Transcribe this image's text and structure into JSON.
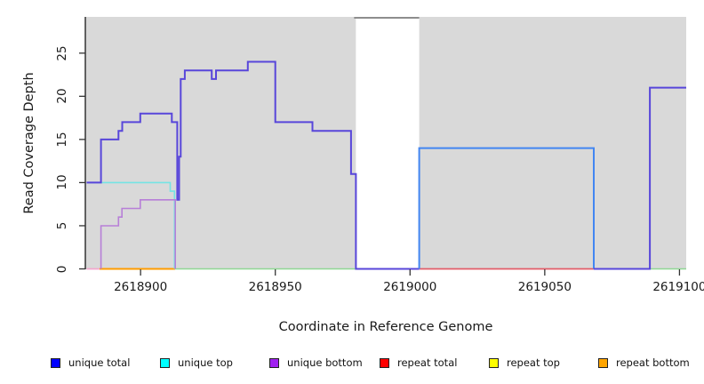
{
  "chart_data": {
    "type": "line",
    "title": "",
    "xlabel": "Coordinate in Reference Genome",
    "ylabel": "Read Coverage Depth",
    "xlim": [
      2618879.5,
      2619102.5
    ],
    "ylim": [
      0,
      29.2
    ],
    "x_ticks": [
      2618900,
      2618950,
      2619000,
      2619050,
      2619100
    ],
    "y_ticks": [
      0,
      5,
      10,
      15,
      20,
      25
    ],
    "grid": false,
    "plot_bg": "#d9d9d9",
    "axis_color": "#333333",
    "gap_region": {
      "from": 2618979.9,
      "to": 2619003.4,
      "fill": "#ffffff",
      "top_border_color": "#8d8d8d"
    },
    "legend_position": "bottom",
    "legend": [
      {
        "label": "unique total",
        "color": "#0000ff"
      },
      {
        "label": "unique top",
        "color": "#00ffff"
      },
      {
        "label": "unique bottom",
        "color": "#a020f0"
      },
      {
        "label": "repeat total",
        "color": "#ff0000"
      },
      {
        "label": "repeat top",
        "color": "#ffff00"
      },
      {
        "label": "repeat bottom",
        "color": "#ffa500"
      }
    ],
    "baseline_segments": [
      {
        "name": "baseline-pink",
        "color": "#f3a6cd",
        "width": 1.8,
        "from": 2618880,
        "to": 2618885.6
      },
      {
        "name": "baseline-orange",
        "color": "#ff9c00",
        "width": 2,
        "from": 2618884.8,
        "to": 2618912.8
      },
      {
        "name": "baseline-green-left",
        "color": "#8fd793",
        "width": 1.6,
        "from": 2618912.8,
        "to": 2618979.9
      },
      {
        "name": "baseline-red",
        "color": "#e25b68",
        "width": 1.8,
        "from": 2619003.4,
        "to": 2619068.2
      },
      {
        "name": "baseline-green-right",
        "color": "#8fd793",
        "width": 1.6,
        "from": 2619089,
        "to": 2619102.5
      }
    ],
    "series": [
      {
        "name": "unique-top-line",
        "color": "#74e4e4",
        "width": 1.6,
        "points": [
          [
            2618880,
            10
          ],
          [
            2618911,
            10
          ],
          [
            2618911,
            9
          ],
          [
            2618912.6,
            9
          ],
          [
            2618912.6,
            0
          ]
        ]
      },
      {
        "name": "unique-bottom-line",
        "color": "#b77fd8",
        "width": 1.6,
        "points": [
          [
            2618885.3,
            0
          ],
          [
            2618885.3,
            5
          ],
          [
            2618891.8,
            5
          ],
          [
            2618891.8,
            6
          ],
          [
            2618893.1,
            6
          ],
          [
            2618893.1,
            7
          ],
          [
            2618899.9,
            7
          ],
          [
            2618899.9,
            8
          ],
          [
            2618912.9,
            8
          ],
          [
            2618912.9,
            0
          ]
        ]
      },
      {
        "name": "coverage-main-line",
        "color": "#5846da",
        "width": 2,
        "points": [
          [
            2618880,
            10
          ],
          [
            2618885.3,
            10
          ],
          [
            2618885.3,
            15
          ],
          [
            2618891.8,
            15
          ],
          [
            2618891.8,
            16
          ],
          [
            2618893.2,
            16
          ],
          [
            2618893.2,
            17
          ],
          [
            2618899.9,
            17
          ],
          [
            2618899.9,
            18
          ],
          [
            2618911.6,
            18
          ],
          [
            2618911.6,
            17
          ],
          [
            2618913.6,
            17
          ],
          [
            2618913.6,
            8
          ],
          [
            2618914.3,
            8
          ],
          [
            2618914.3,
            13
          ],
          [
            2618914.9,
            13
          ],
          [
            2618914.9,
            22
          ],
          [
            2618916.4,
            22
          ],
          [
            2618916.4,
            23
          ],
          [
            2618926.4,
            23
          ],
          [
            2618926.4,
            22
          ],
          [
            2618928,
            22
          ],
          [
            2618928,
            23
          ],
          [
            2618939.8,
            23
          ],
          [
            2618939.8,
            24
          ],
          [
            2618950,
            24
          ],
          [
            2618950,
            17
          ],
          [
            2618963.8,
            17
          ],
          [
            2618963.8,
            16
          ],
          [
            2618978.1,
            16
          ],
          [
            2618978.1,
            11
          ],
          [
            2618979.9,
            11
          ],
          [
            2618979.9,
            0
          ],
          [
            2619003.4,
            0
          ]
        ]
      },
      {
        "name": "coverage-block-14",
        "color": "#4286f2",
        "width": 2,
        "points": [
          [
            2619003.4,
            0
          ],
          [
            2619003.4,
            14
          ],
          [
            2619068.2,
            14
          ],
          [
            2619068.2,
            0
          ]
        ]
      },
      {
        "name": "coverage-block-21",
        "color": "#5846da",
        "width": 2,
        "points": [
          [
            2619068.2,
            0
          ],
          [
            2619089,
            0
          ],
          [
            2619089,
            21
          ],
          [
            2619102.5,
            21
          ]
        ]
      }
    ]
  }
}
